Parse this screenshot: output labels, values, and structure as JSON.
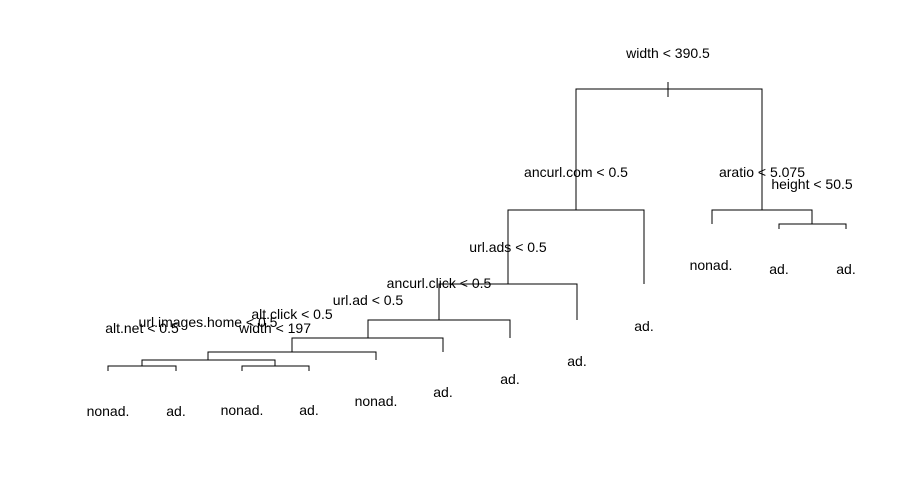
{
  "tree": {
    "root_split": "width < 390.5",
    "splits": {
      "ancurl_com": "ancurl.com < 0.5",
      "aratio": "aratio < 5.075",
      "height": "height < 50.5",
      "url_ads": "url.ads < 0.5",
      "ancurl_click": "ancurl.click < 0.5",
      "url_ad": "url.ad < 0.5",
      "alt_click": "alt.click < 0.5",
      "url_images_home": "url.images.home < 0.5",
      "width_197": "width < 197",
      "alt_net": "alt.net < 0.5"
    },
    "leaves": {
      "l1": "nonad.",
      "l2": "ad.",
      "l3": "nonad.",
      "l4": "ad.",
      "l5": "nonad.",
      "l6": "ad.",
      "l7": "ad.",
      "l8": "ad.",
      "l9": "ad.",
      "l10": "nonad.",
      "l11": "ad.",
      "l12": "ad."
    }
  }
}
